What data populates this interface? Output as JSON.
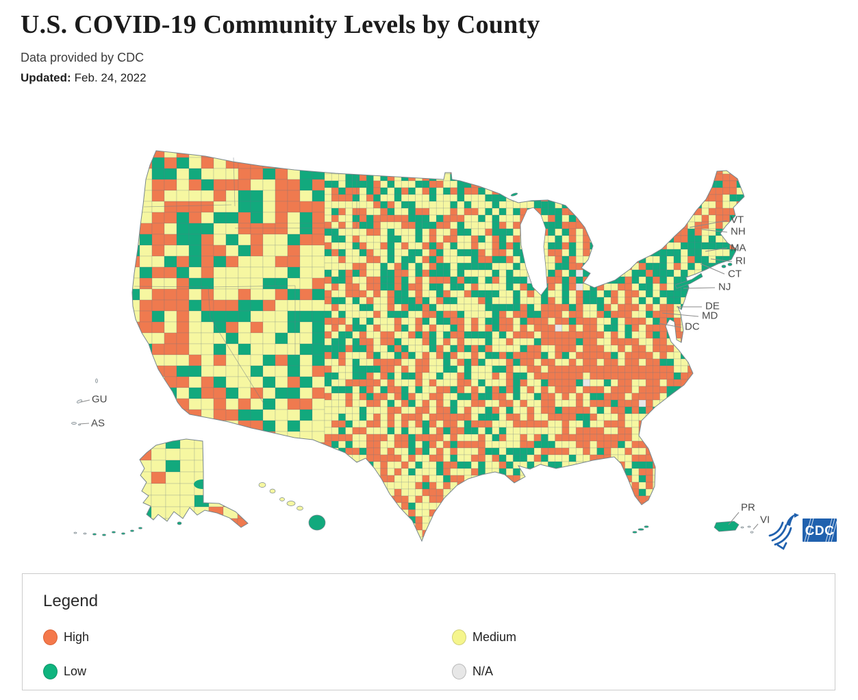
{
  "header": {
    "title": "U.S. COVID-19 Community Levels by County",
    "subtitle": "Data provided by CDC",
    "updated_label": "Updated:",
    "updated_date": "Feb. 24, 2022"
  },
  "map": {
    "state_labels": [
      "VT",
      "NH",
      "MA",
      "RI",
      "CT",
      "NJ",
      "DE",
      "MD",
      "DC"
    ],
    "territory_labels": [
      "GU",
      "AS",
      "PR",
      "VI"
    ],
    "cdc_logo_text": "CDC",
    "hhs_logo": "hhs-eagle-icon",
    "colors": {
      "high": "#EF7A4F",
      "medium": "#F6F7A1",
      "low": "#12A97D",
      "na": "#E7E7E7",
      "logo_blue": "#2061AE",
      "outline": "#77868D"
    }
  },
  "legend": {
    "title": "Legend",
    "items": [
      {
        "label": "High",
        "color": "#F4784B",
        "border": "#DB6134"
      },
      {
        "label": "Medium",
        "color": "#F5F58C",
        "border": "#CFCF76"
      },
      {
        "label": "Low",
        "color": "#0FB47E",
        "border": "#0B9367"
      },
      {
        "label": "N/A",
        "color": "#E7E7E7",
        "border": "#B9B9B9"
      }
    ]
  },
  "chart_data": {
    "type": "choropleth_map",
    "title": "U.S. COVID-19 Community Levels by County",
    "geography": "United States counties, including Alaska, Hawaii and territories (GU, AS, PR, VI)",
    "categories": [
      "High",
      "Medium",
      "Low",
      "N/A"
    ],
    "category_colors": [
      "#F4784B",
      "#F5F58C",
      "#0FB47E",
      "#E7E7E7"
    ],
    "annotated_regions": [
      "VT",
      "NH",
      "MA",
      "RI",
      "CT",
      "NJ",
      "DE",
      "MD",
      "DC",
      "GU",
      "AS",
      "PR",
      "VI"
    ],
    "source": "CDC",
    "updated": "Feb. 24, 2022",
    "legend_position": "bottom"
  }
}
